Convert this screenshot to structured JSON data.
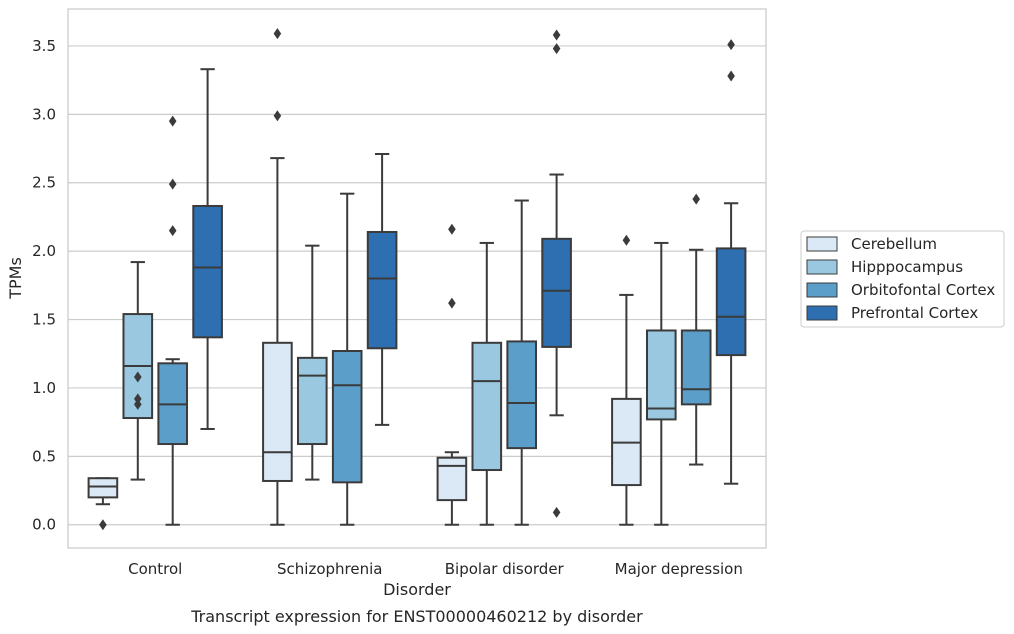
{
  "chart_data": {
    "type": "box",
    "title": "",
    "caption": "Transcript expression for ENST00000460212 by disorder",
    "xlabel": "Disorder",
    "ylabel": "TPMs",
    "ylim": [
      -0.17,
      3.77
    ],
    "yticks": [
      0.0,
      0.5,
      1.0,
      1.5,
      2.0,
      2.5,
      3.0,
      3.5
    ],
    "ytick_labels": [
      "0.0",
      "0.5",
      "1.0",
      "1.5",
      "2.0",
      "2.5",
      "3.0",
      "3.5"
    ],
    "grid": "horizontal",
    "legend_position": "right",
    "categories": [
      "Control",
      "Schizophrenia",
      "Bipolar disorder",
      "Major depression"
    ],
    "series": [
      {
        "name": "Cerebellum",
        "color": "#dbe9f6",
        "boxes": [
          {
            "whisker_low": 0.15,
            "q1": 0.2,
            "median": 0.28,
            "q3": 0.34,
            "whisker_high": 0.34,
            "outliers": [
              0.0
            ]
          },
          {
            "whisker_low": 0.0,
            "q1": 0.32,
            "median": 0.53,
            "q3": 1.33,
            "whisker_high": 2.68,
            "outliers": [
              2.99,
              3.59
            ]
          },
          {
            "whisker_low": 0.0,
            "q1": 0.18,
            "median": 0.43,
            "q3": 0.49,
            "whisker_high": 0.53,
            "outliers": [
              1.62,
              2.16
            ]
          },
          {
            "whisker_low": 0.0,
            "q1": 0.29,
            "median": 0.6,
            "q3": 0.92,
            "whisker_high": 1.68,
            "outliers": [
              2.08
            ]
          }
        ]
      },
      {
        "name": "Hipppocampus",
        "color": "#9ac8e0",
        "boxes": [
          {
            "whisker_low": 0.33,
            "q1": 0.78,
            "median": 1.16,
            "q3": 1.54,
            "whisker_high": 1.92,
            "outliers": [
              0.88,
              0.92,
              1.08
            ]
          },
          {
            "whisker_low": 0.33,
            "q1": 0.59,
            "median": 1.09,
            "q3": 1.22,
            "whisker_high": 2.04,
            "outliers": []
          },
          {
            "whisker_low": 0.0,
            "q1": 0.4,
            "median": 1.05,
            "q3": 1.33,
            "whisker_high": 2.06,
            "outliers": []
          },
          {
            "whisker_low": 0.0,
            "q1": 0.77,
            "median": 0.85,
            "q3": 1.42,
            "whisker_high": 2.06,
            "outliers": []
          }
        ]
      },
      {
        "name": "Orbitofontal Cortex",
        "color": "#5a9ec9",
        "boxes": [
          {
            "whisker_low": 0.0,
            "q1": 0.59,
            "median": 0.88,
            "q3": 1.18,
            "whisker_high": 1.21,
            "outliers": [
              2.15,
              2.49,
              2.95
            ]
          },
          {
            "whisker_low": 0.0,
            "q1": 0.31,
            "median": 1.02,
            "q3": 1.27,
            "whisker_high": 2.42,
            "outliers": []
          },
          {
            "whisker_low": 0.0,
            "q1": 0.56,
            "median": 0.89,
            "q3": 1.34,
            "whisker_high": 2.37,
            "outliers": []
          },
          {
            "whisker_low": 0.44,
            "q1": 0.88,
            "median": 0.99,
            "q3": 1.42,
            "whisker_high": 2.01,
            "outliers": [
              2.38
            ]
          }
        ]
      },
      {
        "name": "Prefrontal Cortex",
        "color": "#2d6fb0",
        "boxes": [
          {
            "whisker_low": 0.7,
            "q1": 1.37,
            "median": 1.88,
            "q3": 2.33,
            "whisker_high": 3.33,
            "outliers": []
          },
          {
            "whisker_low": 0.73,
            "q1": 1.29,
            "median": 1.8,
            "q3": 2.14,
            "whisker_high": 2.71,
            "outliers": []
          },
          {
            "whisker_low": 0.8,
            "q1": 1.3,
            "median": 1.71,
            "q3": 2.09,
            "whisker_high": 2.56,
            "outliers": [
              0.09,
              3.48,
              3.58
            ]
          },
          {
            "whisker_low": 0.3,
            "q1": 1.24,
            "median": 1.52,
            "q3": 2.02,
            "whisker_high": 2.35,
            "outliers": [
              3.28,
              3.51
            ]
          }
        ]
      }
    ]
  }
}
